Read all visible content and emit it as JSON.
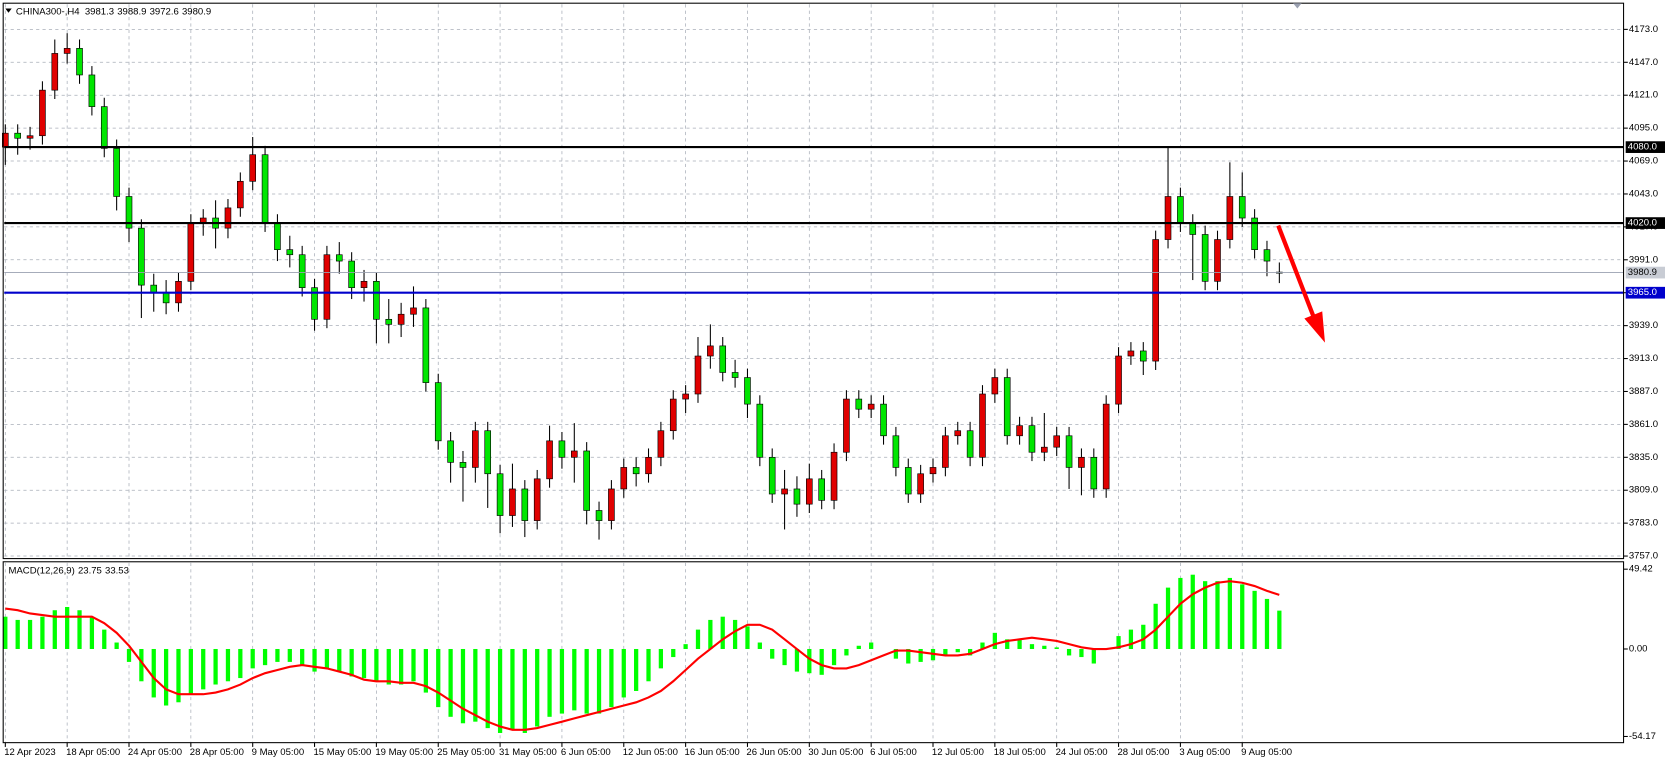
{
  "chart_data": {
    "type": "candlestick",
    "title": "CHINA300-,H4",
    "open": [
      4080,
      4091,
      4087,
      4089,
      4125,
      4154,
      4158,
      4137,
      4112,
      4079,
      4041,
      4016,
      3971,
      3965,
      3957,
      3974,
      4020,
      4024,
      4016,
      4032,
      4053,
      4074,
      4020,
      3999,
      3995,
      3969,
      3944,
      3995,
      3990,
      3969,
      3974,
      3944,
      3940,
      3948,
      3953,
      3894,
      3848,
      3831,
      3827,
      3856,
      3822,
      3789,
      3810,
      3785,
      3818,
      3848,
      3835,
      3840,
      3793,
      3785,
      3810,
      3827,
      3822,
      3835,
      3856,
      3881,
      3885,
      3915,
      3923,
      3902,
      3898,
      3877,
      3835,
      3806,
      3810,
      3798,
      3818,
      3801,
      3839,
      3881,
      3873,
      3877,
      3852,
      3827,
      3806,
      3822,
      3827,
      3852,
      3856,
      3835,
      3885,
      3898,
      3852,
      3860,
      3839,
      3843,
      3852,
      3827,
      3835,
      3810,
      3877,
      3915,
      3919,
      3911,
      4007,
      4041,
      4020,
      4011,
      3974,
      4007,
      4041,
      4024,
      3999,
      3981.3
    ],
    "high": [
      4098,
      4098,
      4096,
      4132,
      4165,
      4170,
      4165,
      4144,
      4119,
      4086,
      4048,
      4023,
      3980,
      3975,
      3981,
      4027,
      4031,
      4038,
      4039,
      4060,
      4088,
      4081,
      4027,
      4010,
      4002,
      3976,
      4002,
      4005,
      3997,
      3983,
      3981,
      3960,
      3957,
      3970,
      3960,
      3901,
      3855,
      3840,
      3863,
      3863,
      3829,
      3830,
      3817,
      3825,
      3860,
      3855,
      3862,
      3847,
      3800,
      3817,
      3834,
      3835,
      3842,
      3863,
      3888,
      3892,
      3930,
      3940,
      3930,
      3912,
      3905,
      3884,
      3842,
      3825,
      3820,
      3830,
      3825,
      3846,
      3888,
      3888,
      3884,
      3884,
      3859,
      3834,
      3829,
      3834,
      3859,
      3863,
      3863,
      3892,
      3905,
      3905,
      3867,
      3867,
      3870,
      3859,
      3859,
      3842,
      3842,
      3884,
      3922,
      3926,
      3926,
      4014,
      4080,
      4048,
      4027,
      4018,
      4014,
      4068,
      4060,
      4031,
      4006,
      3988.9
    ],
    "low": [
      4066,
      4074,
      4078,
      4082,
      4118,
      4146,
      4130,
      4105,
      4072,
      4030,
      4005,
      3945,
      3950,
      3948,
      3950,
      3967,
      4010,
      4000,
      4008,
      4025,
      4046,
      4013,
      3990,
      3985,
      3962,
      3935,
      3937,
      3980,
      3960,
      3958,
      3925,
      3925,
      3930,
      3938,
      3887,
      3841,
      3815,
      3800,
      3815,
      3795,
      3775,
      3780,
      3772,
      3778,
      3811,
      3826,
      3815,
      3782,
      3770,
      3778,
      3803,
      3812,
      3815,
      3828,
      3849,
      3870,
      3878,
      3905,
      3895,
      3890,
      3866,
      3828,
      3799,
      3778,
      3788,
      3791,
      3794,
      3794,
      3832,
      3866,
      3866,
      3845,
      3820,
      3799,
      3799,
      3815,
      3820,
      3845,
      3828,
      3828,
      3878,
      3845,
      3845,
      3832,
      3832,
      3836,
      3810,
      3805,
      3803,
      3803,
      3870,
      3908,
      3900,
      3904,
      4000,
      4013,
      3975,
      3967,
      3967,
      4000,
      4017,
      3992,
      3978,
      3972.6
    ],
    "close": [
      4091,
      4087,
      4089,
      4125,
      4154,
      4158,
      4137,
      4112,
      4079,
      4041,
      4016,
      3971,
      3965,
      3957,
      3974,
      4020,
      4024,
      4016,
      4032,
      4053,
      4074,
      4020,
      3999,
      3995,
      3969,
      3944,
      3995,
      3990,
      3969,
      3974,
      3944,
      3940,
      3948,
      3953,
      3894,
      3848,
      3831,
      3827,
      3856,
      3822,
      3789,
      3810,
      3785,
      3818,
      3848,
      3835,
      3840,
      3793,
      3785,
      3810,
      3827,
      3822,
      3835,
      3856,
      3881,
      3885,
      3915,
      3923,
      3902,
      3898,
      3877,
      3835,
      3806,
      3810,
      3798,
      3818,
      3801,
      3839,
      3881,
      3873,
      3877,
      3852,
      3827,
      3806,
      3822,
      3827,
      3852,
      3856,
      3835,
      3885,
      3898,
      3852,
      3860,
      3839,
      3843,
      3852,
      3827,
      3835,
      3810,
      3877,
      3915,
      3919,
      3911,
      4007,
      4041,
      4020,
      4011,
      3974,
      4007,
      4041,
      4024,
      3999,
      3990,
      3980.9
    ],
    "up_color": "#e00000",
    "down_color": "#00e600",
    "wick_color": "#000000",
    "xlim": [
      0,
      131
    ],
    "xticks": [
      {
        "value": 0,
        "label": "12 Apr 2023"
      },
      {
        "value": 5,
        "label": "18 Apr 05:00"
      },
      {
        "value": 10,
        "label": "24 Apr 05:00"
      },
      {
        "value": 15,
        "label": "28 Apr 05:00"
      },
      {
        "value": 20,
        "label": "9 May 05:00"
      },
      {
        "value": 25,
        "label": "15 May 05:00"
      },
      {
        "value": 30,
        "label": "19 May 05:00"
      },
      {
        "value": 35,
        "label": "25 May 05:00"
      },
      {
        "value": 40,
        "label": "31 May 05:00"
      },
      {
        "value": 45,
        "label": "6 Jun 05:00"
      },
      {
        "value": 50,
        "label": "12 Jun 05:00"
      },
      {
        "value": 55,
        "label": "16 Jun 05:00"
      },
      {
        "value": 60,
        "label": "26 Jun 05:00"
      },
      {
        "value": 65,
        "label": "30 Jun 05:00"
      },
      {
        "value": 70,
        "label": "6 Jul 05:00"
      },
      {
        "value": 75,
        "label": "12 Jul 05:00"
      },
      {
        "value": 80,
        "label": "18 Jul 05:00"
      },
      {
        "value": 85,
        "label": "24 Jul 05:00"
      },
      {
        "value": 90,
        "label": "28 Jul 05:00"
      },
      {
        "value": 95,
        "label": "3 Aug 05:00"
      },
      {
        "value": 100,
        "label": "9 Aug 05:00"
      }
    ],
    "ylim": [
      3755,
      4192
    ],
    "yticks": [
      {
        "value": 4173,
        "label": "4173.0"
      },
      {
        "value": 4147,
        "label": "4147.0"
      },
      {
        "value": 4121,
        "label": "4121.0"
      },
      {
        "value": 4095,
        "label": "4095.0"
      },
      {
        "value": 4069,
        "label": "4069.0"
      },
      {
        "value": 4043,
        "label": "4043.0"
      },
      {
        "value": 4017,
        "label": "4017.0"
      },
      {
        "value": 3991,
        "label": "3991.0"
      },
      {
        "value": 3965,
        "label": "3965.0"
      },
      {
        "value": 3939,
        "label": "3939.0"
      },
      {
        "value": 3913,
        "label": "3913.0"
      },
      {
        "value": 3887,
        "label": "3887.0"
      },
      {
        "value": 3861,
        "label": "3861.0"
      },
      {
        "value": 3835,
        "label": "3835.0"
      },
      {
        "value": 3809,
        "label": "3809.0"
      },
      {
        "value": 3783,
        "label": "3783.0"
      },
      {
        "value": 3757,
        "label": "3757.0"
      }
    ],
    "grid": true,
    "levels": [
      {
        "value": 4080,
        "label": "4080.0",
        "color": "#000000"
      },
      {
        "value": 4020,
        "label": "4020.0",
        "color": "#000000"
      },
      {
        "value": 3965,
        "label": "3965.0",
        "color": "#0000cc"
      }
    ],
    "indicator": {
      "type": "macd",
      "title": "MACD(12,26,9)",
      "histogram": {
        "color": "#00ff00",
        "values": [
          20,
          18,
          18,
          20,
          24,
          26,
          24,
          20,
          12,
          4,
          -8,
          -20,
          -30,
          -35,
          -33,
          -28,
          -25,
          -22,
          -20,
          -18,
          -12,
          -10,
          -8,
          -8,
          -10,
          -14,
          -12,
          -14,
          -17,
          -18,
          -20,
          -22,
          -22,
          -20,
          -27,
          -36,
          -42,
          -46,
          -45,
          -49,
          -52,
          -50,
          -52,
          -48,
          -42,
          -40,
          -38,
          -40,
          -40,
          -36,
          -30,
          -26,
          -20,
          -12,
          -5,
          3,
          12,
          18,
          20,
          18,
          14,
          4,
          -6,
          -10,
          -14,
          -15,
          -16,
          -10,
          -4,
          2,
          4,
          0,
          -6,
          -9,
          -8,
          -7,
          -4,
          -2,
          -4,
          4,
          10,
          6,
          6,
          3,
          2,
          1,
          -4,
          -5,
          -9,
          0,
          8,
          12,
          15,
          28,
          38,
          44,
          46,
          42,
          42,
          44,
          40,
          36,
          31,
          23.75
        ]
      },
      "signal": {
        "color": "#ff0000",
        "values": [
          25,
          24,
          22,
          21,
          20,
          20,
          20,
          20,
          16,
          10,
          2,
          -8,
          -18,
          -25,
          -28,
          -28,
          -28,
          -27,
          -25,
          -22,
          -18,
          -15,
          -13,
          -11,
          -10,
          -11,
          -12,
          -14,
          -16,
          -19,
          -20,
          -20,
          -21,
          -21,
          -23,
          -27,
          -32,
          -37,
          -41,
          -45,
          -48,
          -50,
          -50,
          -49,
          -47,
          -45,
          -43,
          -41,
          -39,
          -37,
          -35,
          -33,
          -30,
          -26,
          -20,
          -13,
          -6,
          0,
          6,
          11,
          15,
          15,
          12,
          6,
          0,
          -6,
          -10,
          -12,
          -12,
          -10,
          -7,
          -4,
          -1,
          -1,
          -2,
          -3,
          -4,
          -4,
          -3,
          0,
          3,
          5,
          6,
          7,
          6,
          5,
          3,
          1,
          0,
          0,
          1,
          3,
          6,
          12,
          20,
          28,
          34,
          38,
          41,
          42,
          41,
          39,
          36,
          33.53
        ]
      },
      "ylim": [
        -58,
        54
      ],
      "yticks": [
        49.42,
        {
          "value": 0,
          "label": "0.00"
        },
        -54.17
      ]
    }
  }
}
